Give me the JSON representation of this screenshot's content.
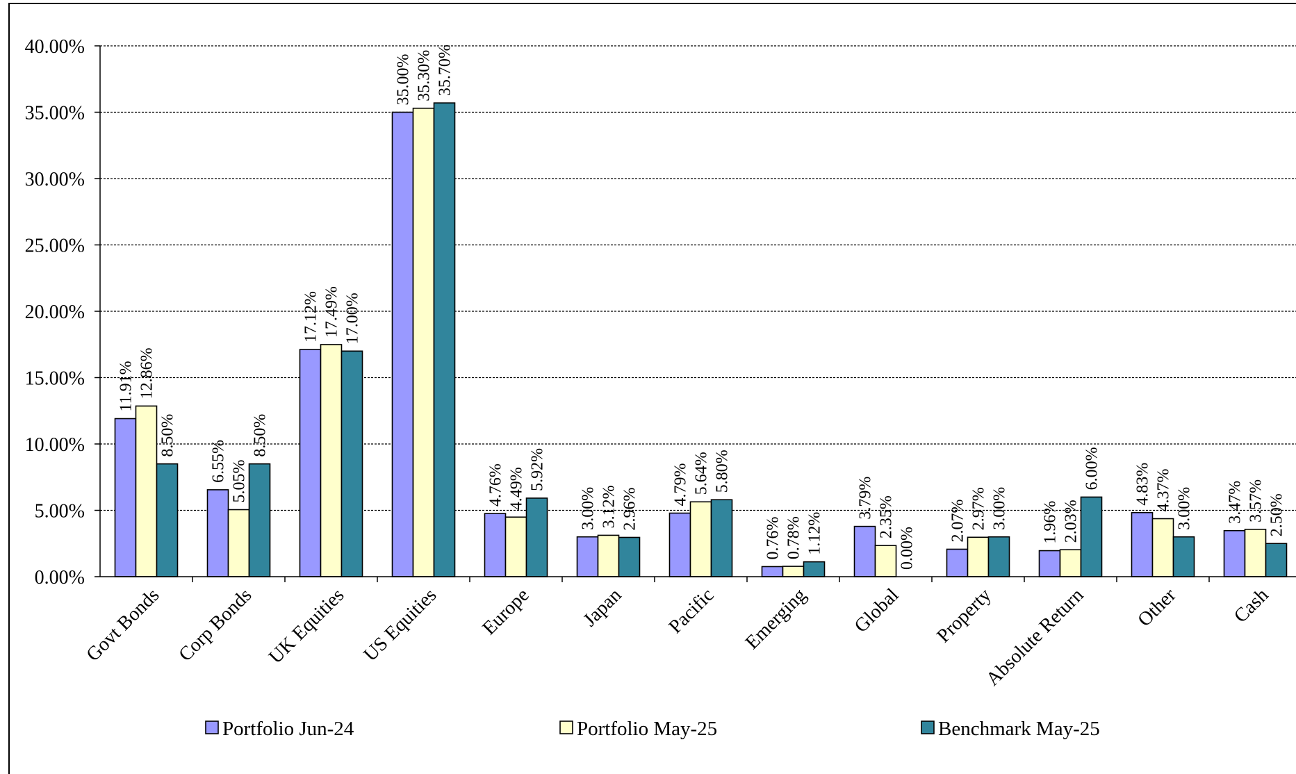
{
  "chart_data": {
    "type": "bar",
    "categories": [
      "Govt Bonds",
      "Corp Bonds",
      "UK Equities",
      "US Equities",
      "Europe",
      "Japan",
      "Pacific",
      "Emerging",
      "Global",
      "Property",
      "Absolute Return",
      "Other",
      "Cash"
    ],
    "series": [
      {
        "name": "Portfolio Jun-24",
        "color": "#9999ff",
        "values": [
          11.91,
          6.55,
          17.12,
          35.0,
          4.76,
          3.0,
          4.79,
          0.76,
          3.79,
          2.07,
          1.96,
          4.83,
          3.47
        ],
        "labels": [
          "11.91%",
          "6.55%",
          "17.12%",
          "35.00%",
          "4.76%",
          "3.00%",
          "4.79%",
          "0.76%",
          "3.79%",
          "2.07%",
          "1.96%",
          "4.83%",
          "3.47%"
        ]
      },
      {
        "name": "Portfolio May-25",
        "color": "#ffffcc",
        "values": [
          12.86,
          5.05,
          17.49,
          35.3,
          4.49,
          3.12,
          5.64,
          0.78,
          2.35,
          2.97,
          2.03,
          4.37,
          3.57
        ],
        "labels": [
          "12.86%",
          "5.05%",
          "17.49%",
          "35.30%",
          "4.49%",
          "3.12%",
          "5.64%",
          "0.78%",
          "2.35%",
          "2.97%",
          "2.03%",
          "4.37%",
          "3.57%"
        ]
      },
      {
        "name": "Benchmark May-25",
        "color": "#31859c",
        "values": [
          8.5,
          8.5,
          17.0,
          35.7,
          5.92,
          2.96,
          5.8,
          1.12,
          0.0,
          3.0,
          6.0,
          3.0,
          2.5
        ],
        "labels": [
          "8.50%",
          "8.50%",
          "17.00%",
          "35.70%",
          "5.92%",
          "2.96%",
          "5.80%",
          "1.12%",
          "0.00%",
          "3.00%",
          "6.00%",
          "3.00%",
          "2.50%"
        ]
      }
    ],
    "y_ticks": [
      {
        "value": 0,
        "label": "0.00%"
      },
      {
        "value": 5,
        "label": "5.00%"
      },
      {
        "value": 10,
        "label": "10.00%"
      },
      {
        "value": 15,
        "label": "15.00%"
      },
      {
        "value": 20,
        "label": "20.00%"
      },
      {
        "value": 25,
        "label": "25.00%"
      },
      {
        "value": 30,
        "label": "30.00%"
      },
      {
        "value": 35,
        "label": "35.00%"
      },
      {
        "value": 40,
        "label": "40.00%"
      }
    ],
    "ylim": [
      0,
      40
    ],
    "grid": true,
    "legend_position": "bottom"
  }
}
